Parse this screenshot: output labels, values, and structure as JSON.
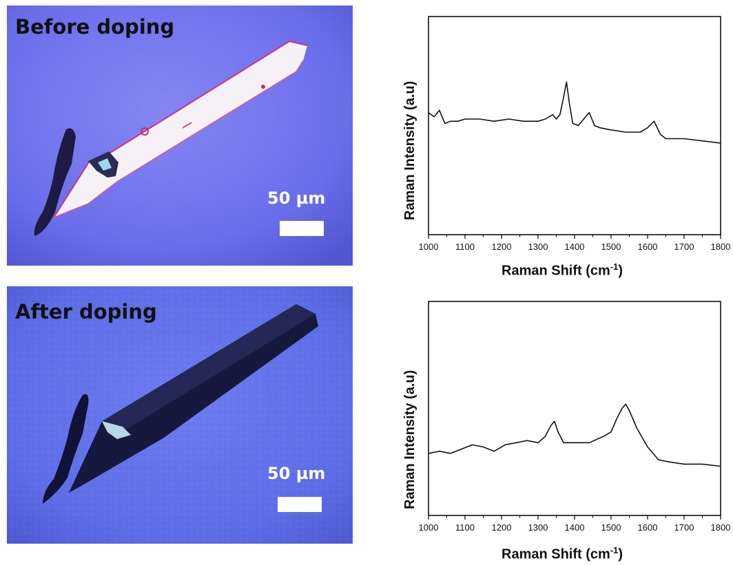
{
  "panels": [
    {
      "image": {
        "label": "Before doping",
        "scale": "50 µm",
        "colors": {
          "background": "#6f72ee",
          "crystal": "#f4f0f2",
          "edge": "#d02f80",
          "dark_flake": "#1a1a40"
        }
      }
    },
    {
      "image": {
        "label": "After doping",
        "scale": "50 µm",
        "colors": {
          "background": "#5f6fe6",
          "crystal": "#14183a",
          "dark_flake": "#0e1030"
        }
      }
    }
  ],
  "chart_data": [
    {
      "type": "line",
      "title": "",
      "xlabel": "Raman Shift (cm",
      "xlabel_sup": "-1",
      "xlabel_tail": ")",
      "ylabel": "Raman Intensity (a.u)",
      "xlim": [
        1000,
        1800
      ],
      "ylim": [
        0,
        100
      ],
      "xticks": [
        "1000",
        "1100",
        "1200",
        "1300",
        "1400",
        "1500",
        "1600",
        "1700",
        "1800"
      ],
      "grid": false,
      "yticks_labeled": false,
      "series": [
        {
          "x": [
            1000,
            1015,
            1030,
            1045,
            1060,
            1080,
            1100,
            1140,
            1180,
            1220,
            1260,
            1300,
            1320,
            1340,
            1350,
            1360,
            1370,
            1378,
            1386,
            1395,
            1410,
            1425,
            1440,
            1455,
            1470,
            1500,
            1540,
            1580,
            1600,
            1618,
            1635,
            1650,
            1700,
            1750,
            1800
          ],
          "y": [
            56,
            54,
            57,
            51,
            52,
            52,
            53,
            53,
            52,
            53,
            52,
            52,
            53,
            55,
            53,
            55,
            63,
            70,
            60,
            51,
            50,
            53,
            56,
            50,
            49,
            48,
            47,
            47,
            49,
            52,
            46,
            44,
            44,
            43,
            42
          ]
        }
      ]
    },
    {
      "type": "line",
      "title": "",
      "xlabel": "Raman Shift (cm",
      "xlabel_sup": "-1",
      "xlabel_tail": ")",
      "ylabel": "Raman Intensity (a.u)",
      "xlim": [
        1000,
        1800
      ],
      "ylim": [
        0,
        100
      ],
      "xticks": [
        "1000",
        "1100",
        "1200",
        "1300",
        "1400",
        "1500",
        "1600",
        "1700",
        "1800"
      ],
      "grid": false,
      "yticks_labeled": false,
      "series": [
        {
          "x": [
            1000,
            1030,
            1060,
            1090,
            1120,
            1150,
            1180,
            1210,
            1240,
            1270,
            1300,
            1320,
            1335,
            1345,
            1355,
            1370,
            1400,
            1440,
            1480,
            1500,
            1515,
            1530,
            1540,
            1550,
            1570,
            1600,
            1630,
            1660,
            1700,
            1750,
            1800
          ],
          "y": [
            29,
            30,
            29,
            31,
            33,
            32,
            30,
            33,
            34,
            35,
            34,
            37,
            42,
            44,
            39,
            34,
            34,
            34,
            37,
            39,
            45,
            50,
            52,
            49,
            41,
            32,
            26,
            25,
            24,
            24,
            23
          ]
        }
      ]
    }
  ]
}
